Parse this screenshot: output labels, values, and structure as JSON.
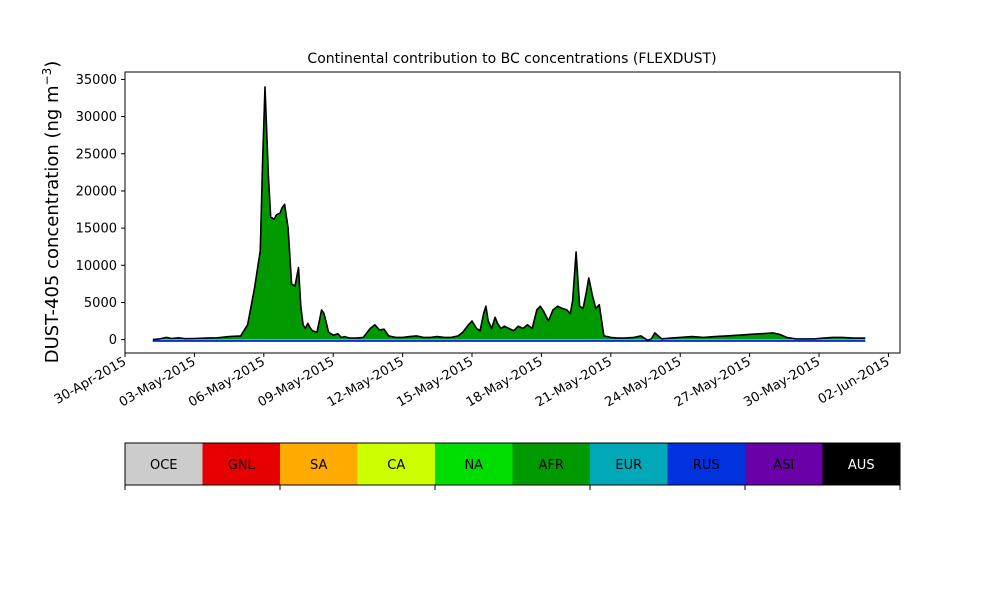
{
  "chart_data": {
    "type": "area",
    "title": "Continental contribution to BC concentrations (FLEXDUST)",
    "ylabel": "DUST-405 concentration (ng m",
    "ylabel_sup": "−3",
    "ylabel_close": ")",
    "xlabel": "",
    "x_start": "2015-04-30",
    "xlim": [
      0.0,
      33.5
    ],
    "ylim": [
      -1800,
      36000
    ],
    "x_ticks": [
      {
        "pos": 0,
        "label": "30-Apr-2015"
      },
      {
        "pos": 3,
        "label": "03-May-2015"
      },
      {
        "pos": 6,
        "label": "06-May-2015"
      },
      {
        "pos": 9,
        "label": "09-May-2015"
      },
      {
        "pos": 12,
        "label": "12-May-2015"
      },
      {
        "pos": 15,
        "label": "15-May-2015"
      },
      {
        "pos": 18,
        "label": "18-May-2015"
      },
      {
        "pos": 21,
        "label": "21-May-2015"
      },
      {
        "pos": 24,
        "label": "24-May-2015"
      },
      {
        "pos": 27,
        "label": "27-May-2015"
      },
      {
        "pos": 30,
        "label": "30-May-2015"
      },
      {
        "pos": 33,
        "label": "02-Jun-2015"
      }
    ],
    "y_ticks": [
      {
        "value": 0,
        "label": "0"
      },
      {
        "value": 5000,
        "label": "5000"
      },
      {
        "value": 10000,
        "label": "10000"
      },
      {
        "value": 15000,
        "label": "15000"
      },
      {
        "value": 20000,
        "label": "20000"
      },
      {
        "value": 25000,
        "label": "25000"
      },
      {
        "value": 30000,
        "label": "30000"
      },
      {
        "value": 35000,
        "label": "35000"
      }
    ],
    "legend_position": "bottom",
    "legend": [
      {
        "code": "OCE",
        "color": "#cccccc",
        "text_color": "#000000"
      },
      {
        "code": "GNL",
        "color": "#e60000",
        "text_color": "#000000"
      },
      {
        "code": "SA",
        "color": "#ffaa00",
        "text_color": "#000000"
      },
      {
        "code": "CA",
        "color": "#ccff00",
        "text_color": "#000000"
      },
      {
        "code": "NA",
        "color": "#00dd00",
        "text_color": "#000000"
      },
      {
        "code": "AFR",
        "color": "#009a00",
        "text_color": "#000000"
      },
      {
        "code": "EUR",
        "color": "#00a8b8",
        "text_color": "#000000"
      },
      {
        "code": "RUS",
        "color": "#0033dd",
        "text_color": "#000000"
      },
      {
        "code": "ASI",
        "color": "#6a00a8",
        "text_color": "#000000"
      },
      {
        "code": "AUS",
        "color": "#000000",
        "text_color": "#ffffff"
      }
    ],
    "series_color_afr": "#009a00",
    "total_line_color": "#000000",
    "total": {
      "x": [
        1.2,
        1.5,
        1.8,
        2.0,
        2.3,
        2.6,
        3.0,
        3.5,
        4.0,
        4.5,
        5.0,
        5.3,
        5.6,
        5.85,
        5.95,
        6.05,
        6.2,
        6.3,
        6.45,
        6.55,
        6.7,
        6.8,
        6.9,
        7.05,
        7.2,
        7.35,
        7.5,
        7.6,
        7.7,
        7.8,
        7.9,
        8.0,
        8.1,
        8.3,
        8.5,
        8.6,
        8.8,
        9.0,
        9.2,
        9.35,
        9.5,
        9.7,
        10.0,
        10.3,
        10.6,
        10.8,
        11.0,
        11.2,
        11.4,
        11.7,
        12.0,
        12.3,
        12.6,
        12.9,
        13.2,
        13.5,
        13.8,
        14.1,
        14.4,
        14.6,
        14.85,
        15.0,
        15.2,
        15.35,
        15.5,
        15.6,
        15.7,
        15.85,
        16.0,
        16.1,
        16.25,
        16.4,
        16.6,
        16.8,
        17.0,
        17.2,
        17.4,
        17.6,
        17.8,
        17.95,
        18.1,
        18.3,
        18.5,
        18.7,
        18.9,
        19.1,
        19.25,
        19.35,
        19.5,
        19.65,
        19.8,
        19.95,
        20.05,
        20.2,
        20.35,
        20.5,
        20.7,
        21.0,
        21.3,
        21.6,
        22.0,
        22.3,
        22.6,
        22.75,
        22.9,
        23.2,
        23.6,
        24.0,
        24.5,
        25.0,
        25.5,
        26.0,
        26.5,
        27.0,
        27.5,
        28.0,
        28.3,
        28.6,
        29.0,
        29.4,
        29.8,
        30.2,
        30.6,
        31.0,
        31.5,
        32.0
      ],
      "values": [
        0,
        100,
        300,
        150,
        250,
        120,
        150,
        200,
        250,
        400,
        500,
        2000,
        7000,
        12000,
        24000,
        34000,
        22000,
        16500,
        16200,
        16800,
        17000,
        17800,
        18200,
        15000,
        7500,
        7200,
        9700,
        4500,
        2000,
        1500,
        2200,
        1600,
        1200,
        1000,
        4000,
        3500,
        1000,
        600,
        800,
        300,
        400,
        200,
        200,
        300,
        1500,
        2000,
        1300,
        1400,
        500,
        300,
        300,
        400,
        500,
        300,
        300,
        400,
        300,
        300,
        500,
        1000,
        2000,
        2500,
        1500,
        1200,
        3500,
        4500,
        2500,
        1500,
        3000,
        2200,
        1500,
        1800,
        1500,
        1200,
        1800,
        1500,
        2000,
        1500,
        4000,
        4500,
        3800,
        2500,
        4000,
        4500,
        4200,
        4000,
        3500,
        5200,
        11800,
        4500,
        4200,
        6500,
        8300,
        6000,
        4200,
        4700,
        500,
        300,
        200,
        200,
        300,
        500,
        -100,
        100,
        900,
        100,
        200,
        300,
        400,
        300,
        400,
        500,
        600,
        700,
        800,
        900,
        700,
        300,
        100,
        100,
        100,
        200,
        300,
        300,
        200,
        200
      ]
    }
  }
}
